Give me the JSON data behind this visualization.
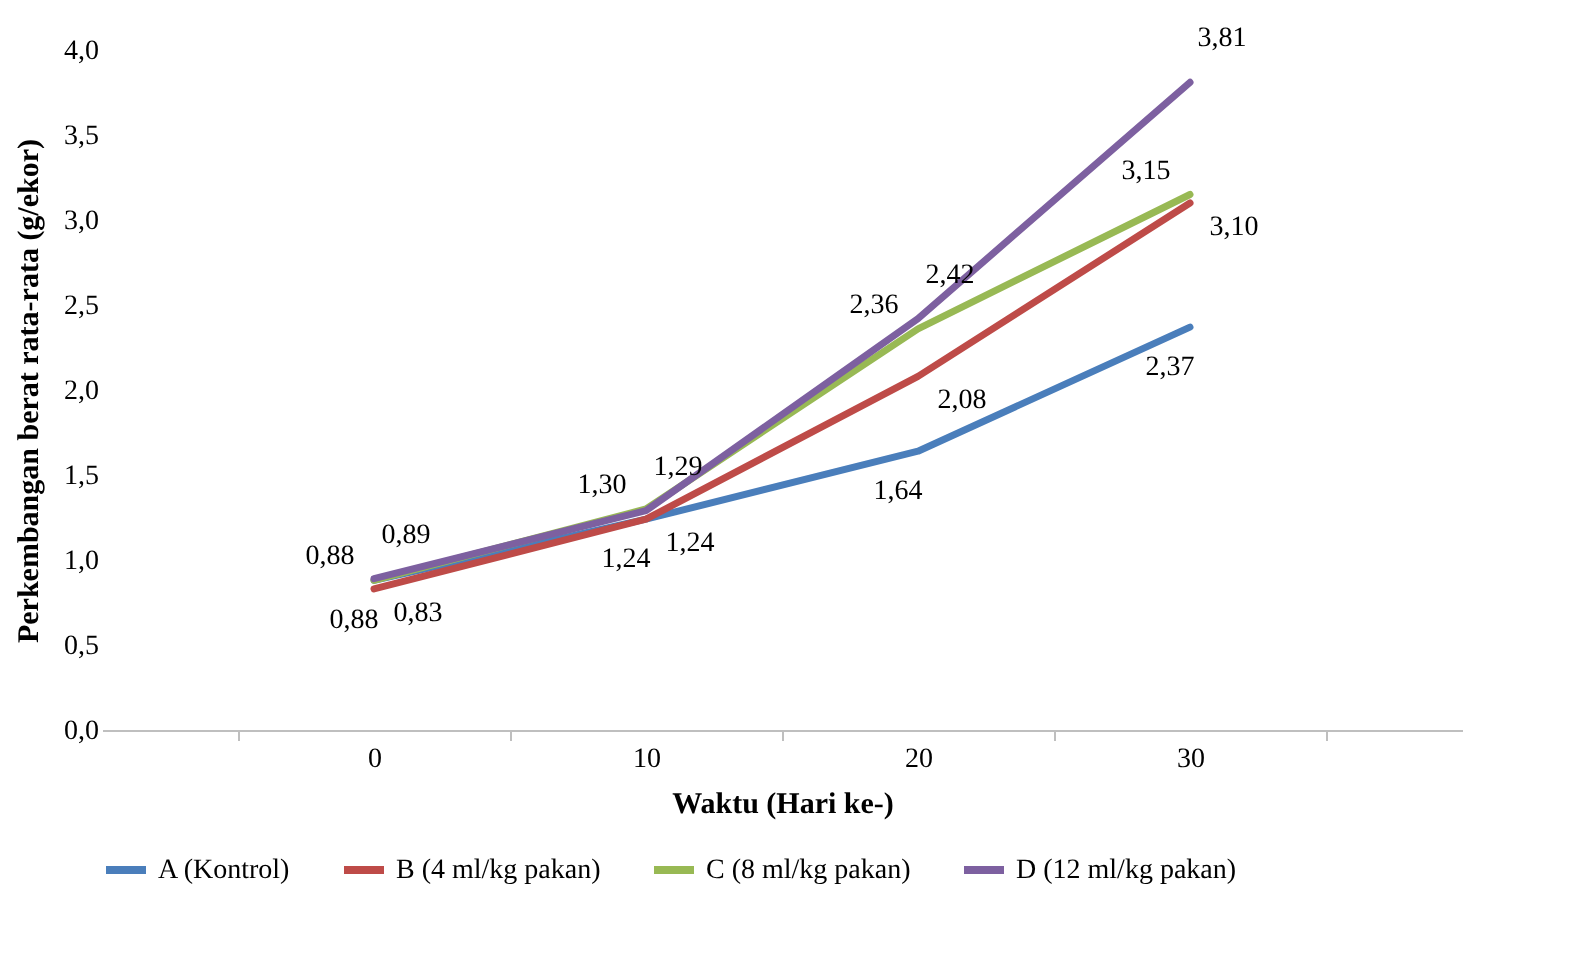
{
  "chart_data": {
    "type": "line",
    "xlabel": "Waktu (Hari ke-)",
    "ylabel": "Perkembangan berat rata-rata (g/ekor)",
    "categories": [
      "0",
      "10",
      "20",
      "30"
    ],
    "ylim": [
      0,
      4
    ],
    "yticks": [
      {
        "value": 0,
        "label": "0,0"
      },
      {
        "value": 0.5,
        "label": "0,5"
      },
      {
        "value": 1,
        "label": "1,0"
      },
      {
        "value": 1.5,
        "label": "1,5"
      },
      {
        "value": 2,
        "label": "2,0"
      },
      {
        "value": 2.5,
        "label": "2,5"
      },
      {
        "value": 3,
        "label": "3,0"
      },
      {
        "value": 3.5,
        "label": "3,5"
      },
      {
        "value": 4,
        "label": "4,0"
      }
    ],
    "grid": false,
    "legend": "bottom",
    "marker": "none",
    "series": [
      {
        "name": "A (Kontrol)",
        "color": "#4a7ebb",
        "values": [
          0.88,
          1.24,
          1.64,
          2.37
        ],
        "value_labels": [
          "0,88",
          "1,24",
          "1,64",
          "2,37"
        ]
      },
      {
        "name": "B (4 ml/kg pakan)",
        "color": "#be4b48",
        "values": [
          0.83,
          1.24,
          2.08,
          3.1
        ],
        "value_labels": [
          "0,83",
          "1,24",
          "2,08",
          "3,10"
        ]
      },
      {
        "name": "C (8 ml/kg pakan)",
        "color": "#98b954",
        "values": [
          0.88,
          1.3,
          2.36,
          3.15
        ],
        "value_labels": [
          "0,88",
          "1,30",
          "2,36",
          "3,15"
        ]
      },
      {
        "name": "D (12 ml/kg pakan)",
        "color": "#7d60a0",
        "values": [
          0.89,
          1.29,
          2.42,
          3.81
        ],
        "value_labels": [
          "0,89",
          "1,29",
          "2,42",
          "3,81"
        ]
      }
    ]
  }
}
